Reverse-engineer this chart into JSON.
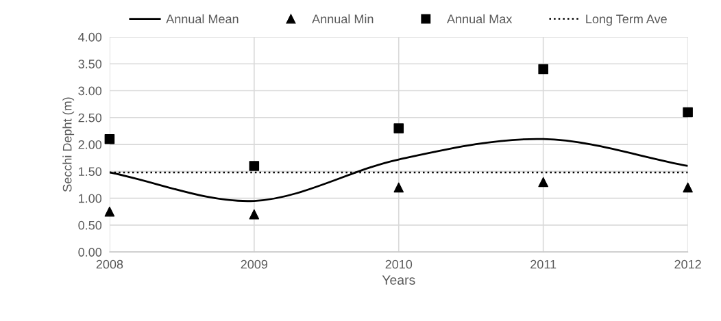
{
  "chart_data": {
    "type": "line",
    "xlabel": "Years",
    "ylabel": "Secchi Depht (m)",
    "x": [
      2008,
      2009,
      2010,
      2011,
      2012
    ],
    "xlim": [
      2008,
      2012
    ],
    "xticks": [
      2008,
      2009,
      2010,
      2011,
      2012
    ],
    "ylim": [
      0,
      4
    ],
    "yticks": [
      {
        "value": 0,
        "label": "0.00"
      },
      {
        "value": 0.5,
        "label": "0.50"
      },
      {
        "value": 1,
        "label": "1.00"
      },
      {
        "value": 1.5,
        "label": "1.50"
      },
      {
        "value": 2,
        "label": "2.00"
      },
      {
        "value": 2.5,
        "label": "2.50"
      },
      {
        "value": 3,
        "label": "3.00"
      },
      {
        "value": 3.5,
        "label": "3.50"
      },
      {
        "value": 4,
        "label": "4.00"
      }
    ],
    "series": [
      {
        "name": "Annual Mean",
        "color": "#000000",
        "marker": "none",
        "line_style": "solid",
        "values": [
          1.48,
          0.95,
          1.72,
          2.1,
          1.6
        ]
      },
      {
        "name": "Annual Min",
        "type": "scatter",
        "color": "#000000",
        "marker": "triangle",
        "values": [
          0.75,
          0.7,
          1.2,
          1.3,
          1.2
        ]
      },
      {
        "name": "Annual Max",
        "type": "scatter",
        "color": "#000000",
        "marker": "square",
        "values": [
          2.1,
          1.6,
          2.3,
          3.4,
          2.6
        ]
      }
    ],
    "ref_lines": [
      {
        "axis": "y",
        "value": 1.48,
        "label": "Long Term Ave",
        "color": "#000000",
        "line_style": "dotted"
      }
    ],
    "grid": true,
    "legend": "top"
  }
}
